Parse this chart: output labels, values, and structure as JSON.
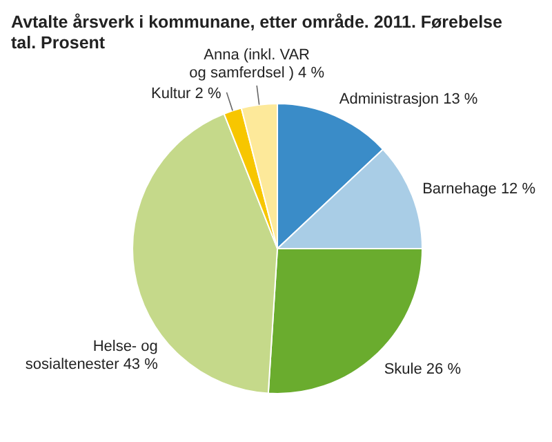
{
  "chart_data": {
    "type": "pie",
    "title": "Avtalte årsverk i kommunane, etter område. 2011. Førebelse tal. Prosent",
    "categories": [
      "Administrasjon",
      "Barnehage",
      "Skule",
      "Helse- og sosialtenester",
      "Kultur",
      "Anna (inkl. VAR og samferdsel )"
    ],
    "values": [
      13,
      12,
      26,
      43,
      2,
      4
    ],
    "value_labels": [
      "13 %",
      "12 %",
      "26 %",
      "43 %",
      "2 %",
      "4 %"
    ],
    "colors": [
      "#3a8cc8",
      "#a9cde6",
      "#6aac2e",
      "#c5d98a",
      "#f7c600",
      "#fde99a"
    ]
  }
}
